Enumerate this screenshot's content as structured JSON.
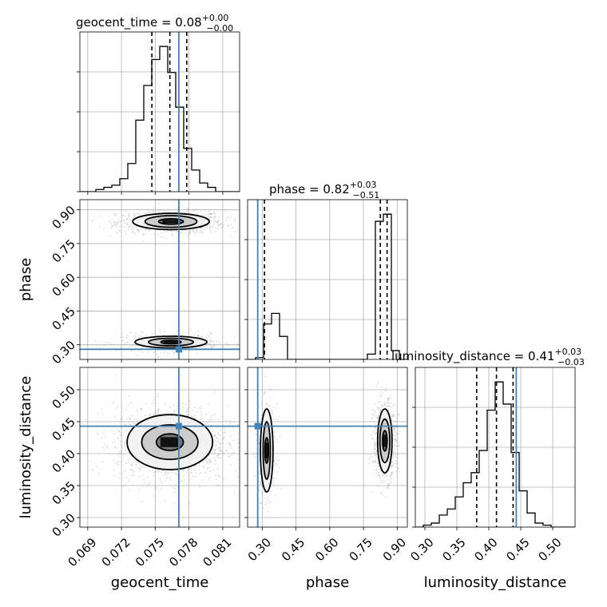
{
  "colors": {
    "truth": "#4682b4",
    "line": "#000000",
    "grid": "#b0b0b0",
    "scatter": "#9a9a9a"
  },
  "chart_data": {
    "type": "corner",
    "parameters": [
      {
        "key": "geocent_time",
        "label": "geocent_time",
        "title": {
          "prefix": "geocent_time = ",
          "value": "0.08",
          "plus": "+0.00",
          "minus": "−0.00"
        },
        "range": [
          0.0683,
          0.0825
        ],
        "ticks": [
          0.069,
          0.072,
          0.075,
          0.078,
          0.081
        ],
        "tick_labels": [
          "0.069",
          "0.072",
          "0.075",
          "0.078",
          "0.081"
        ],
        "truth": 0.0771,
        "quantiles": [
          0.0747,
          0.0763,
          0.0778
        ],
        "hist_edges_range": [
          0.0683,
          0.0825
        ],
        "hist": [
          0,
          0,
          1,
          2,
          3,
          6,
          13,
          33,
          49,
          61,
          67,
          55,
          39,
          20,
          10,
          4,
          2,
          0,
          0,
          0
        ]
      },
      {
        "key": "phase",
        "label": "phase",
        "title": {
          "prefix": "phase = ",
          "value": "0.82",
          "plus": "+0.03",
          "minus": "−0.51"
        },
        "range": [
          0.235,
          0.945
        ],
        "ticks": [
          0.3,
          0.45,
          0.6,
          0.75,
          0.9
        ],
        "tick_labels": [
          "0.30",
          "0.45",
          "0.60",
          "0.75",
          "0.90"
        ],
        "truth": 0.28,
        "quantiles": [
          0.31,
          0.825,
          0.855
        ],
        "hist_edges_range": [
          0.235,
          0.945
        ],
        "hist": [
          0,
          1,
          20,
          26,
          13,
          0,
          0,
          0,
          0,
          0,
          0,
          0,
          0,
          0,
          0,
          3,
          78,
          82,
          5,
          0
        ]
      },
      {
        "key": "luminosity_distance",
        "label": "luminosity_distance",
        "title": {
          "prefix": "luminosity_distance = ",
          "value": "0.41",
          "plus": "+0.03",
          "minus": "−0.03"
        },
        "range": [
          0.285,
          0.535
        ],
        "ticks": [
          0.3,
          0.35,
          0.4,
          0.45,
          0.5
        ],
        "tick_labels": [
          "0.30",
          "0.35",
          "0.40",
          "0.45",
          "0.50"
        ],
        "truth": 0.443,
        "quantiles": [
          0.381,
          0.412,
          0.438
        ],
        "hist_edges_range": [
          0.285,
          0.535
        ],
        "hist": [
          0,
          1,
          2,
          6,
          9,
          15,
          22,
          27,
          38,
          58,
          72,
          61,
          37,
          18,
          7,
          2,
          1,
          0,
          0,
          0
        ]
      }
    ],
    "pairs": [
      {
        "x": "geocent_time",
        "y": "phase",
        "blobs": [
          {
            "cx": 0.0764,
            "cy": 0.845,
            "sx": 0.0024,
            "sy": 0.025,
            "n": 900
          },
          {
            "cx": 0.0763,
            "cy": 0.31,
            "sx": 0.0022,
            "sy": 0.02,
            "n": 450
          }
        ],
        "contours": [
          {
            "cx": 0.0764,
            "cy": 0.848,
            "rx": [
              0.0011,
              0.0023,
              0.0034
            ],
            "ry": [
              0.012,
              0.026,
              0.036
            ]
          },
          {
            "cx": 0.0764,
            "cy": 0.312,
            "rx": [
              0.0009,
              0.002,
              0.0032
            ],
            "ry": [
              0.008,
              0.017,
              0.026
            ]
          }
        ]
      },
      {
        "x": "geocent_time",
        "y": "luminosity_distance",
        "blobs": [
          {
            "cx": 0.0764,
            "cy": 0.415,
            "sx": 0.0025,
            "sy": 0.03,
            "n": 1400
          }
        ],
        "contours": [
          {
            "cx": 0.0763,
            "cy": 0.418,
            "rx": [
              0.0012,
              0.0025,
              0.0038
            ],
            "ry": [
              0.013,
              0.027,
              0.043
            ]
          }
        ]
      },
      {
        "x": "phase",
        "y": "luminosity_distance",
        "blobs": [
          {
            "cx": 0.32,
            "cy": 0.405,
            "sx": 0.02,
            "sy": 0.035,
            "n": 500
          },
          {
            "cx": 0.845,
            "cy": 0.42,
            "sx": 0.025,
            "sy": 0.03,
            "n": 900
          }
        ],
        "contours": [
          {
            "cx": 0.32,
            "cy": 0.405,
            "rx": [
              0.008,
              0.016,
              0.028
            ],
            "ry": [
              0.02,
              0.045,
              0.065
            ]
          },
          {
            "cx": 0.845,
            "cy": 0.42,
            "rx": [
              0.01,
              0.022,
              0.032
            ],
            "ry": [
              0.016,
              0.034,
              0.05
            ]
          }
        ]
      }
    ],
    "grid": true
  }
}
